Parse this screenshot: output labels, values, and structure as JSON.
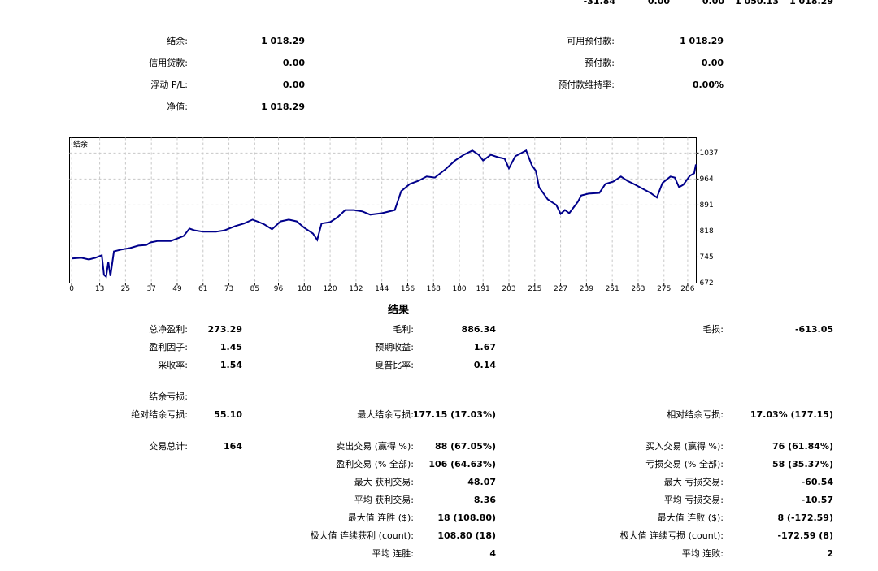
{
  "summary_row": [
    "-31.84",
    "0.00",
    "0.00",
    "1 050.13",
    "1 018.29"
  ],
  "account": {
    "left": [
      {
        "label": "结余:",
        "value": "1 018.29"
      },
      {
        "label": "信用贷款:",
        "value": "0.00"
      },
      {
        "label": "浮动 P/L:",
        "value": "0.00"
      },
      {
        "label": "净值:",
        "value": "1 018.29"
      }
    ],
    "right": [
      {
        "label": "可用预付款:",
        "value": "1 018.29"
      },
      {
        "label": "预付款:",
        "value": "0.00"
      },
      {
        "label": "预付款维持率:",
        "value": "0.00%"
      }
    ]
  },
  "chart_data": {
    "type": "line",
    "title": "结余",
    "x": [
      0,
      4.5,
      8,
      11,
      14,
      15,
      16,
      17,
      18,
      19.6,
      23,
      27,
      31,
      34.7,
      36.6,
      40,
      46,
      49,
      52,
      54.7,
      57,
      61,
      67,
      71,
      76,
      80,
      84,
      87,
      89.6,
      93,
      97,
      100.8,
      104.5,
      108,
      112,
      114,
      116,
      120,
      123.5,
      127,
      131,
      135,
      138.6,
      144,
      150,
      153,
      157,
      161,
      164.8,
      168.6,
      173.5,
      178,
      182,
      186,
      189,
      191,
      194.6,
      198,
      201,
      203,
      206,
      211,
      213.6,
      215.5,
      217,
      221,
      225,
      227,
      229,
      231,
      235,
      236.6,
      240,
      245,
      247.8,
      251.5,
      255,
      258,
      261,
      265,
      268.7,
      271.7,
      274.3,
      278,
      280,
      282,
      284,
      287,
      289,
      289.8
    ],
    "series": [
      {
        "color": "#00008b",
        "values": [
          741,
          743,
          738,
          743,
          750,
          695,
          690,
          731,
          692,
          761,
          766,
          770,
          777,
          779,
          786,
          790,
          790,
          797,
          804,
          825,
          820,
          816,
          816,
          820,
          832,
          839,
          850,
          843,
          836,
          823,
          845,
          850,
          845,
          827,
          811,
          793,
          839,
          843,
          857,
          877,
          877,
          873,
          864,
          868,
          877,
          930,
          950,
          959,
          971,
          968,
          991,
          1016,
          1032,
          1044,
          1032,
          1016,
          1032,
          1025,
          1021,
          994,
          1028,
          1044,
          1003,
          987,
          941,
          907,
          891,
          866,
          877,
          868,
          900,
          918,
          923,
          925,
          950,
          957,
          971,
          959,
          950,
          937,
          925,
          912,
          953,
          971,
          968,
          941,
          948,
          973,
          980,
          1005
        ]
      }
    ],
    "xlim": [
      -1,
      290
    ],
    "ylim": [
      672,
      1080
    ],
    "xticks": [
      0,
      13,
      25,
      37,
      49,
      61,
      73,
      85,
      96,
      108,
      120,
      132,
      144,
      156,
      168,
      180,
      191,
      203,
      215,
      227,
      239,
      251,
      263,
      275,
      286
    ],
    "yticks": [
      672,
      745,
      818,
      891,
      964,
      1037
    ],
    "grid": true
  },
  "results": {
    "title": "结果",
    "rows": [
      [
        {
          "label": "总净盈利:",
          "value": "273.29"
        },
        {
          "label": "毛利:",
          "value": "886.34"
        },
        {
          "label": "毛损:",
          "value": "-613.05"
        }
      ],
      [
        {
          "label": "盈利因子:",
          "value": "1.45"
        },
        {
          "label": "预期收益:",
          "value": "1.67"
        },
        null
      ],
      [
        {
          "label": "采收率:",
          "value": "1.54"
        },
        {
          "label": "夏普比率:",
          "value": "0.14"
        },
        null
      ],
      [
        {
          "label": "结余亏损:"
        },
        null,
        null
      ],
      [
        {
          "label": "绝对结余亏损:",
          "value": "55.10"
        },
        {
          "label": "最大结余亏损:",
          "value": "177.15 (17.03%)"
        },
        {
          "label": "相对结余亏损:",
          "value": "17.03% (177.15)"
        }
      ],
      [
        {
          "label": "交易总计:",
          "value": "164"
        },
        {
          "label": "卖出交易 (赢得 %):",
          "value": "88 (67.05%)"
        },
        {
          "label": "买入交易 (赢得 %):",
          "value": "76 (61.84%)"
        }
      ],
      [
        null,
        {
          "label": "盈利交易 (% 全部):",
          "value": "106 (64.63%)"
        },
        {
          "label": "亏损交易 (% 全部):",
          "value": "58 (35.37%)"
        }
      ],
      [
        null,
        {
          "label": "最大 获利交易:",
          "value": "48.07"
        },
        {
          "label": "最大 亏损交易:",
          "value": "-60.54"
        }
      ],
      [
        null,
        {
          "label": "平均 获利交易:",
          "value": "8.36"
        },
        {
          "label": "平均 亏损交易:",
          "value": "-10.57"
        }
      ],
      [
        null,
        {
          "label": "最大值 连胜 ($):",
          "value": "18 (108.80)"
        },
        {
          "label": "最大值 连败 ($):",
          "value": "8 (-172.59)"
        }
      ],
      [
        null,
        {
          "label": "极大值 连续获利 (count):",
          "value": "108.80 (18)"
        },
        {
          "label": "极大值 连续亏损 (count):",
          "value": "-172.59 (8)"
        }
      ],
      [
        null,
        {
          "label": "平均 连胜:",
          "value": "4"
        },
        {
          "label": "平均 连败:",
          "value": "2"
        }
      ]
    ]
  }
}
